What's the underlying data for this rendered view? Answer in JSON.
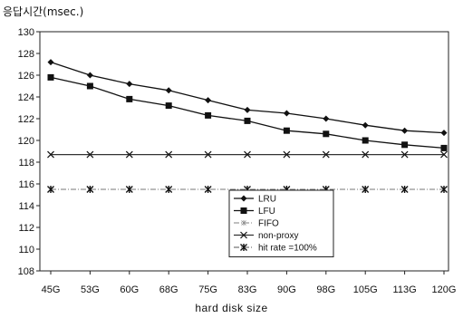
{
  "chart_data": {
    "type": "line",
    "ylabel": "응답시간(msec.)",
    "xlabel": "hard disk size",
    "categories": [
      "45G",
      "53G",
      "60G",
      "68G",
      "75G",
      "83G",
      "90G",
      "98G",
      "105G",
      "113G",
      "120G"
    ],
    "ylim": [
      108,
      130
    ],
    "yticks": [
      108,
      110,
      112,
      114,
      116,
      118,
      120,
      122,
      124,
      126,
      128,
      130
    ],
    "grid": false,
    "legend_position": "bottom-center",
    "series": [
      {
        "name": "LRU",
        "marker": "diamond",
        "line": "solid",
        "values": [
          127.2,
          126.0,
          125.2,
          124.6,
          123.7,
          122.8,
          122.5,
          122.0,
          121.4,
          120.9,
          120.7
        ]
      },
      {
        "name": "LFU",
        "marker": "square",
        "line": "solid",
        "values": [
          125.8,
          125.0,
          123.8,
          123.2,
          122.3,
          121.8,
          120.9,
          120.6,
          120.0,
          119.6,
          119.3
        ]
      },
      {
        "name": "FIFO",
        "marker": "star",
        "line": "dashdot",
        "values": [
          115.5,
          115.5,
          115.5,
          115.5,
          115.5,
          115.5,
          115.5,
          115.5,
          115.5,
          115.5,
          115.5
        ]
      },
      {
        "name": "non-proxy",
        "marker": "x",
        "line": "solid",
        "values": [
          118.7,
          118.7,
          118.7,
          118.7,
          118.7,
          118.7,
          118.7,
          118.7,
          118.7,
          118.7,
          118.7
        ]
      },
      {
        "name": "hit rate =100%",
        "marker": "asterisk",
        "line": "dashdot",
        "values": [
          115.5,
          115.5,
          115.5,
          115.5,
          115.5,
          115.5,
          115.5,
          115.5,
          115.5,
          115.5,
          115.5
        ]
      }
    ]
  }
}
